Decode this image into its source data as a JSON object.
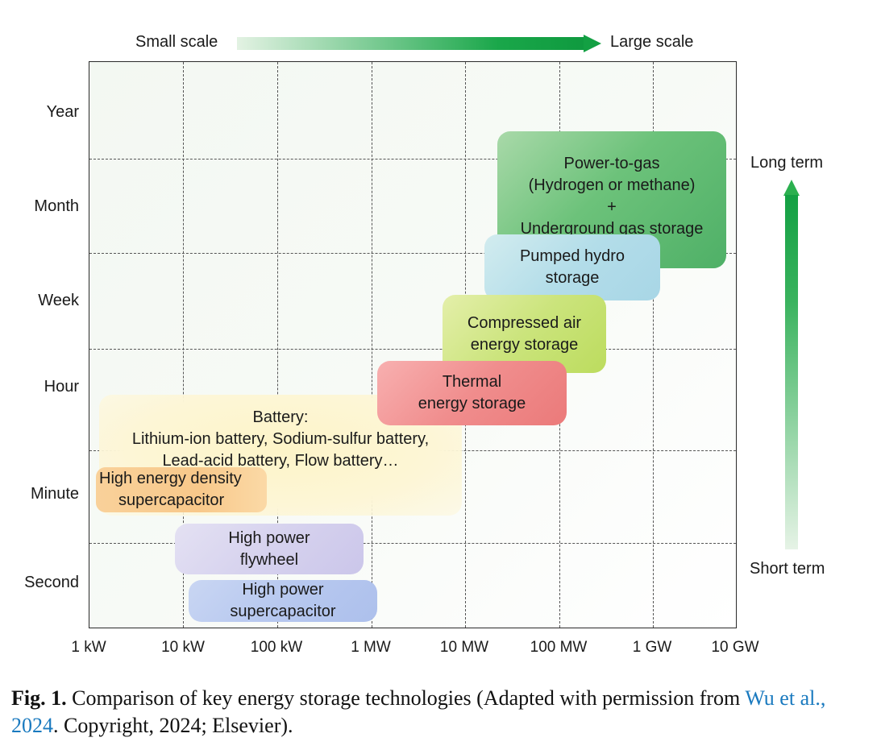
{
  "scale_arrow": {
    "left_label": "Small scale",
    "right_label": "Large scale"
  },
  "term_arrow": {
    "top_label": "Long term",
    "bottom_label": "Short term"
  },
  "y_axis": {
    "labels": [
      "Year",
      "Month",
      "Week",
      "Hour",
      "Minute",
      "Second"
    ]
  },
  "x_axis": {
    "labels": [
      "1 kW",
      "10 kW",
      "100 kW",
      "1 MW",
      "10 MW",
      "100 MW",
      "1 GW",
      "10 GW"
    ]
  },
  "technologies": {
    "power_to_gas": {
      "line1": "Power-to-gas",
      "line2": "(Hydrogen or methane)",
      "line3": "+",
      "line4": "Underground gas storage",
      "color": "#5cb86a"
    },
    "pumped_hydro": {
      "line1": "Pumped hydro",
      "line2": "storage",
      "color": "#b8e0ea"
    },
    "compressed_air": {
      "line1": "Compressed air",
      "line2": "energy storage",
      "color": "#c8e27a"
    },
    "thermal": {
      "line1": "Thermal",
      "line2": "energy storage",
      "color": "#f08a8a"
    },
    "battery": {
      "line1": "Battery:",
      "line2": "Lithium-ion battery, Sodium-sulfur battery,",
      "line3": "Lead-acid battery, Flow battery…",
      "color": "#fdf6d2"
    },
    "high_energy_supercap": {
      "line1": "High energy density",
      "line2": "supercapacitor",
      "color": "#f7c98b"
    },
    "flywheel": {
      "line1": "High power",
      "line2": "flywheel",
      "color": "#d9d6ef"
    },
    "high_power_supercap": {
      "line1": "High power",
      "line2": "supercapacitor",
      "color": "#bccbef"
    }
  },
  "caption": {
    "fig_label": "Fig. 1.",
    "text_before_link": " Comparison of key energy storage technologies (Adapted with permission from ",
    "link_text": "Wu et al., 2024",
    "text_after_link": ". Copyright, 2024; Elsevier)."
  }
}
